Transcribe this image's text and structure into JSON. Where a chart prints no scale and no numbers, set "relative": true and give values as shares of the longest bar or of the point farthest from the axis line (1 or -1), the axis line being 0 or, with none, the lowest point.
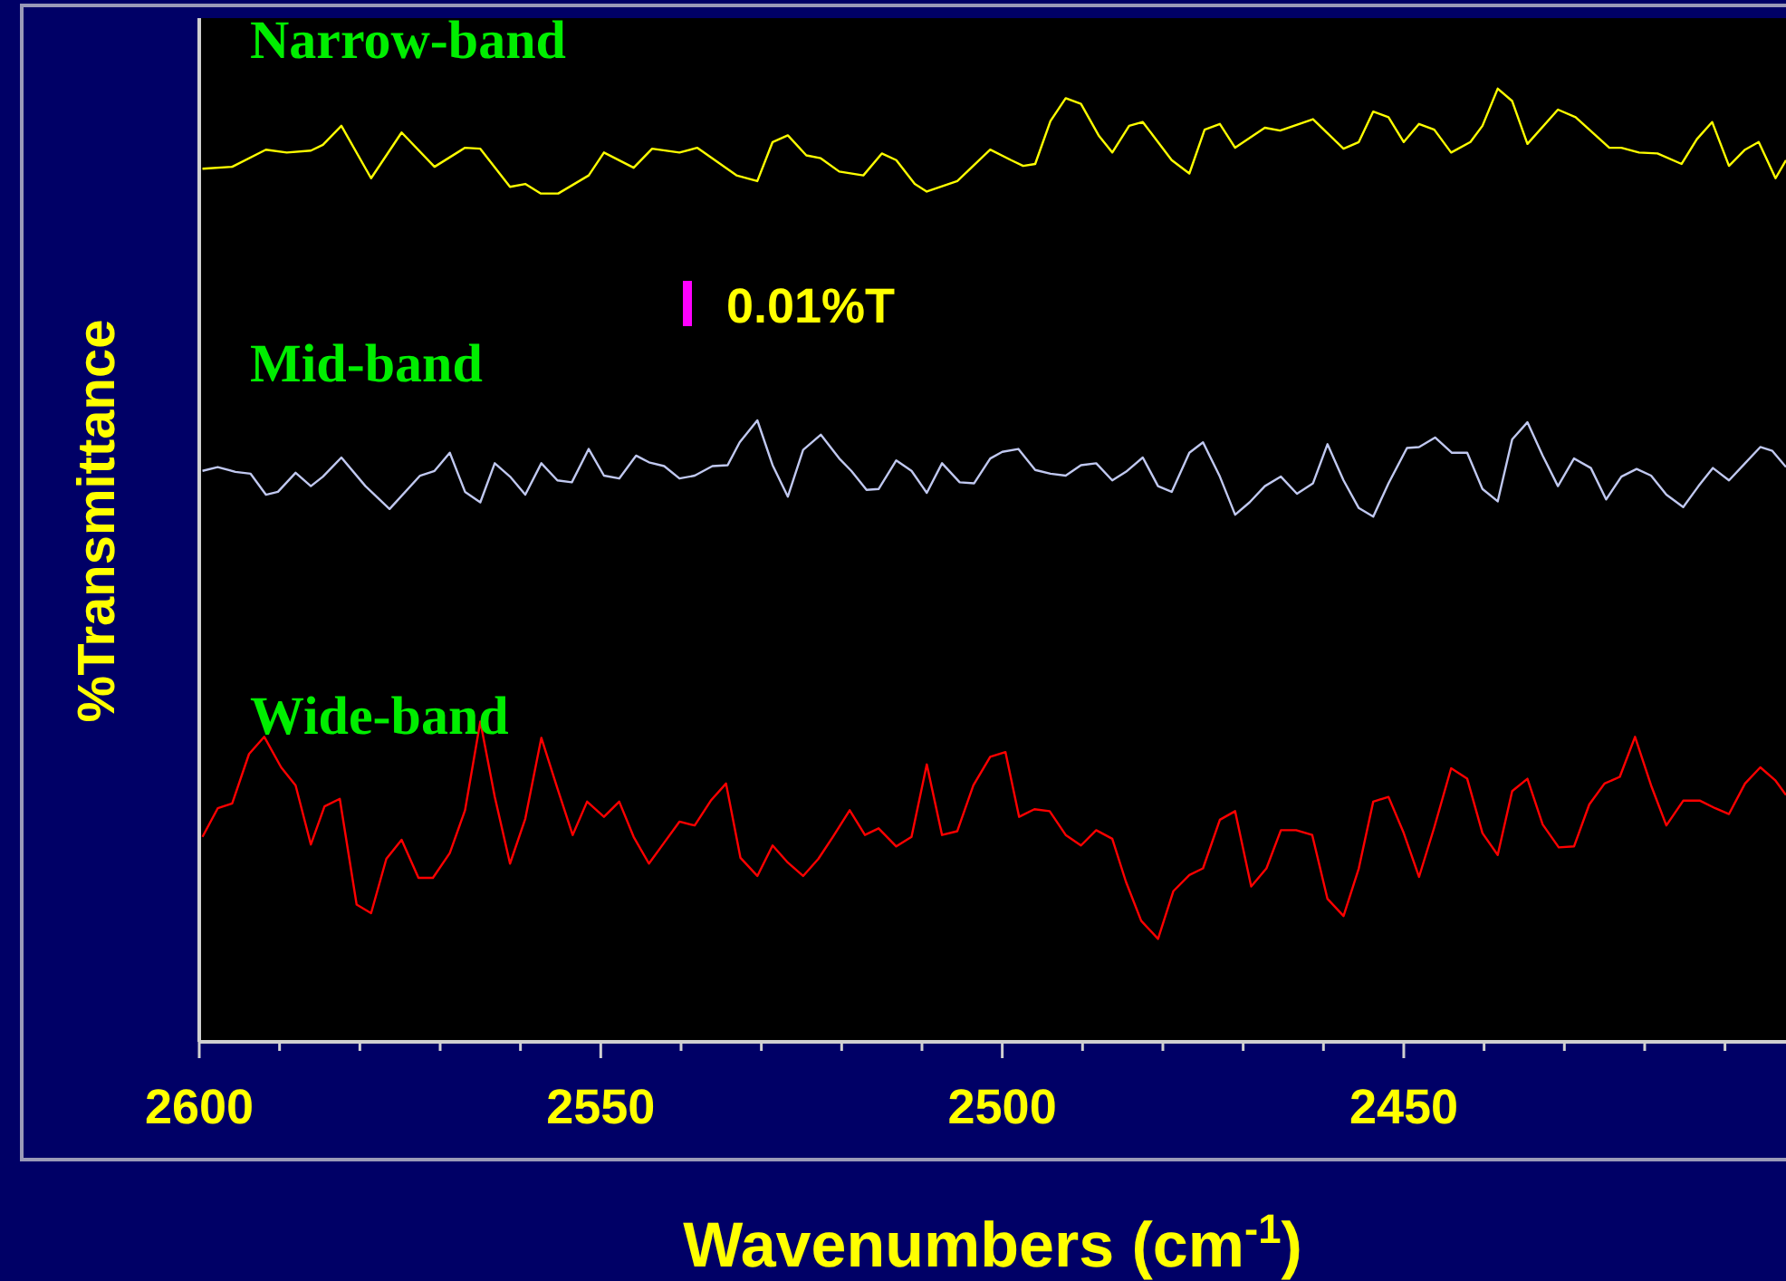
{
  "chart_data": {
    "type": "line",
    "relative": true,
    "xlabel": "Wavenumbers (cm$^{-1}$)",
    "ylabel": "%Transmittance",
    "xlim": [
      2600,
      2402.4
    ],
    "xticks": [
      2600,
      {
        "value": 2590,
        "label": null
      },
      {
        "value": 2580,
        "label": null
      },
      {
        "value": 2570,
        "label": null
      },
      {
        "value": 2560,
        "label": null
      },
      2550,
      {
        "value": 2540,
        "label": null
      },
      {
        "value": 2530,
        "label": null
      },
      {
        "value": 2520,
        "label": null
      },
      {
        "value": 2510,
        "label": null
      },
      2500,
      {
        "value": 2490,
        "label": null
      },
      {
        "value": 2480,
        "label": null
      },
      {
        "value": 2470,
        "label": null
      },
      {
        "value": 2460,
        "label": null
      },
      2450,
      {
        "value": 2440,
        "label": null
      },
      {
        "value": 2430,
        "label": null
      },
      {
        "value": 2420,
        "label": null
      },
      {
        "value": 2410,
        "label": null
      }
    ],
    "grid": false,
    "marker": "none",
    "line_style": "solid",
    "annotations": [
      "0.01%T"
    ],
    "series": [
      {
        "name": "Narrow-band",
        "color": "#ffff00",
        "x": [
          2599.6,
          2595.9,
          2591.7,
          2589.1,
          2586.1,
          2584.6,
          2582.3,
          2578.6,
          2574.8,
          2570.7,
          2566.9,
          2565.0,
          2561.3,
          2559.4,
          2557.5,
          2555.3,
          2551.5,
          2549.6,
          2545.9,
          2543.6,
          2540.2,
          2538.0,
          2533.1,
          2530.5,
          2528.6,
          2526.7,
          2524.4,
          2522.6,
          2520.3,
          2517.3,
          2515.0,
          2513.2,
          2510.9,
          2509.4,
          2505.6,
          2501.5,
          2498.9,
          2497.4,
          2495.9,
          2494.0,
          2492.1,
          2490.2,
          2488.0,
          2486.3,
          2484.2,
          2482.5,
          2478.9,
          2476.7,
          2474.8,
          2472.9,
          2471.0,
          2467.3,
          2465.4,
          2461.3,
          2457.5,
          2455.6,
          2453.8,
          2451.9,
          2450.0,
          2448.1,
          2446.2,
          2444.1,
          2441.7,
          2440.2,
          2438.3,
          2436.5,
          2434.6,
          2430.8,
          2428.6,
          2424.4,
          2422.9,
          2420.7,
          2418.4,
          2415.4,
          2413.5,
          2411.6,
          2409.5,
          2407.5,
          2405.8,
          2403.7,
          2402.4
        ],
        "values": [
          0.916,
          0.918,
          0.936,
          0.933,
          0.935,
          0.941,
          0.961,
          0.906,
          0.954,
          0.918,
          0.938,
          0.937,
          0.897,
          0.9,
          0.89,
          0.89,
          0.909,
          0.933,
          0.917,
          0.937,
          0.933,
          0.938,
          0.909,
          0.903,
          0.944,
          0.951,
          0.93,
          0.927,
          0.913,
          0.909,
          0.932,
          0.925,
          0.9,
          0.892,
          0.903,
          0.936,
          0.925,
          0.919,
          0.921,
          0.966,
          0.99,
          0.984,
          0.951,
          0.933,
          0.961,
          0.965,
          0.925,
          0.911,
          0.957,
          0.963,
          0.938,
          0.959,
          0.956,
          0.968,
          0.937,
          0.944,
          0.976,
          0.97,
          0.944,
          0.963,
          0.957,
          0.933,
          0.944,
          0.961,
          1.0,
          0.987,
          0.942,
          0.978,
          0.97,
          0.938,
          0.938,
          0.933,
          0.932,
          0.921,
          0.947,
          0.965,
          0.919,
          0.936,
          0.944,
          0.906,
          0.925
        ]
      },
      {
        "name": "Mid-band",
        "color": "#c0c8f0",
        "x": [
          2599.6,
          2597.7,
          2595.5,
          2593.6,
          2591.7,
          2590.2,
          2588.0,
          2586.1,
          2584.6,
          2582.3,
          2579.3,
          2576.3,
          2572.5,
          2570.7,
          2568.8,
          2566.9,
          2565.0,
          2563.2,
          2561.3,
          2559.4,
          2557.4,
          2555.4,
          2553.6,
          2551.5,
          2549.6,
          2547.7,
          2545.6,
          2544.0,
          2542.1,
          2540.2,
          2538.3,
          2536.1,
          2534.2,
          2532.7,
          2530.5,
          2528.6,
          2526.7,
          2524.8,
          2522.6,
          2520.3,
          2518.8,
          2516.9,
          2515.4,
          2513.2,
          2511.3,
          2509.4,
          2507.5,
          2505.3,
          2503.5,
          2501.5,
          2500.0,
          2498.0,
          2495.9,
          2494.0,
          2492.1,
          2490.2,
          2488.3,
          2486.3,
          2484.6,
          2482.5,
          2480.6,
          2478.9,
          2476.7,
          2475.0,
          2472.9,
          2471.0,
          2469.2,
          2467.3,
          2465.3,
          2463.3,
          2461.3,
          2459.5,
          2457.5,
          2455.6,
          2453.8,
          2451.9,
          2449.6,
          2448.1,
          2446.1,
          2444.0,
          2442.1,
          2440.2,
          2438.3,
          2436.5,
          2434.6,
          2432.7,
          2430.8,
          2428.8,
          2426.7,
          2424.8,
          2422.9,
          2421.0,
          2419.2,
          2417.3,
          2415.2,
          2413.3,
          2411.5,
          2409.5,
          2407.5,
          2405.6,
          2404.1,
          2402.4
        ],
        "values": [
          0.599,
          0.603,
          0.598,
          0.596,
          0.574,
          0.577,
          0.597,
          0.583,
          0.593,
          0.613,
          0.583,
          0.559,
          0.594,
          0.599,
          0.618,
          0.577,
          0.566,
          0.607,
          0.593,
          0.574,
          0.607,
          0.589,
          0.587,
          0.622,
          0.594,
          0.591,
          0.615,
          0.608,
          0.604,
          0.591,
          0.594,
          0.604,
          0.605,
          0.629,
          0.652,
          0.605,
          0.572,
          0.621,
          0.637,
          0.612,
          0.599,
          0.579,
          0.58,
          0.61,
          0.599,
          0.576,
          0.607,
          0.587,
          0.586,
          0.612,
          0.619,
          0.622,
          0.6,
          0.596,
          0.594,
          0.605,
          0.607,
          0.589,
          0.598,
          0.613,
          0.583,
          0.577,
          0.618,
          0.629,
          0.593,
          0.553,
          0.566,
          0.583,
          0.593,
          0.575,
          0.586,
          0.627,
          0.589,
          0.56,
          0.551,
          0.586,
          0.623,
          0.624,
          0.634,
          0.618,
          0.618,
          0.58,
          0.567,
          0.632,
          0.65,
          0.615,
          0.583,
          0.612,
          0.602,
          0.569,
          0.593,
          0.601,
          0.594,
          0.574,
          0.561,
          0.583,
          0.602,
          0.589,
          0.607,
          0.624,
          0.62,
          0.603
        ]
      },
      {
        "name": "Wide-band",
        "color": "#ff0000",
        "x": [
          2599.6,
          2597.7,
          2595.9,
          2593.8,
          2591.9,
          2589.8,
          2588.0,
          2586.1,
          2584.4,
          2582.5,
          2580.4,
          2578.6,
          2576.7,
          2574.8,
          2572.7,
          2570.9,
          2568.8,
          2566.9,
          2565.0,
          2563.2,
          2561.3,
          2559.4,
          2557.4,
          2555.4,
          2553.5,
          2551.7,
          2549.6,
          2547.7,
          2545.9,
          2544.0,
          2542.1,
          2540.2,
          2538.3,
          2536.3,
          2534.4,
          2532.6,
          2530.5,
          2528.6,
          2526.7,
          2524.8,
          2522.9,
          2521.1,
          2519.0,
          2517.1,
          2515.4,
          2513.2,
          2511.3,
          2509.4,
          2507.5,
          2505.6,
          2503.6,
          2501.5,
          2499.6,
          2497.9,
          2496.0,
          2494.1,
          2492.1,
          2490.2,
          2488.3,
          2486.3,
          2484.6,
          2482.7,
          2480.6,
          2478.7,
          2476.7,
          2475.0,
          2472.9,
          2471.0,
          2469.0,
          2467.1,
          2465.3,
          2463.4,
          2461.4,
          2459.5,
          2457.5,
          2455.6,
          2453.8,
          2451.9,
          2450.0,
          2448.1,
          2446.2,
          2444.1,
          2442.1,
          2440.2,
          2438.3,
          2436.5,
          2434.6,
          2432.7,
          2430.7,
          2428.8,
          2426.9,
          2425.0,
          2423.1,
          2421.2,
          2419.2,
          2417.3,
          2415.2,
          2413.1,
          2411.2,
          2409.5,
          2407.5,
          2405.6,
          2403.7,
          2402.4
        ],
        "values": [
          0.215,
          0.245,
          0.25,
          0.302,
          0.32,
          0.288,
          0.269,
          0.207,
          0.247,
          0.255,
          0.144,
          0.135,
          0.192,
          0.212,
          0.172,
          0.172,
          0.198,
          0.243,
          0.336,
          0.257,
          0.187,
          0.234,
          0.319,
          0.266,
          0.217,
          0.252,
          0.236,
          0.252,
          0.215,
          0.187,
          0.209,
          0.231,
          0.227,
          0.253,
          0.271,
          0.193,
          0.174,
          0.206,
          0.188,
          0.174,
          0.192,
          0.215,
          0.243,
          0.217,
          0.224,
          0.205,
          0.215,
          0.291,
          0.217,
          0.221,
          0.269,
          0.299,
          0.304,
          0.236,
          0.244,
          0.242,
          0.217,
          0.206,
          0.222,
          0.213,
          0.168,
          0.127,
          0.108,
          0.158,
          0.175,
          0.182,
          0.233,
          0.242,
          0.163,
          0.182,
          0.222,
          0.222,
          0.217,
          0.15,
          0.132,
          0.182,
          0.252,
          0.257,
          0.219,
          0.173,
          0.225,
          0.287,
          0.276,
          0.219,
          0.196,
          0.263,
          0.276,
          0.228,
          0.204,
          0.205,
          0.249,
          0.271,
          0.278,
          0.32,
          0.269,
          0.227,
          0.253,
          0.253,
          0.245,
          0.239,
          0.271,
          0.288,
          0.274,
          0.259
        ]
      }
    ]
  }
}
